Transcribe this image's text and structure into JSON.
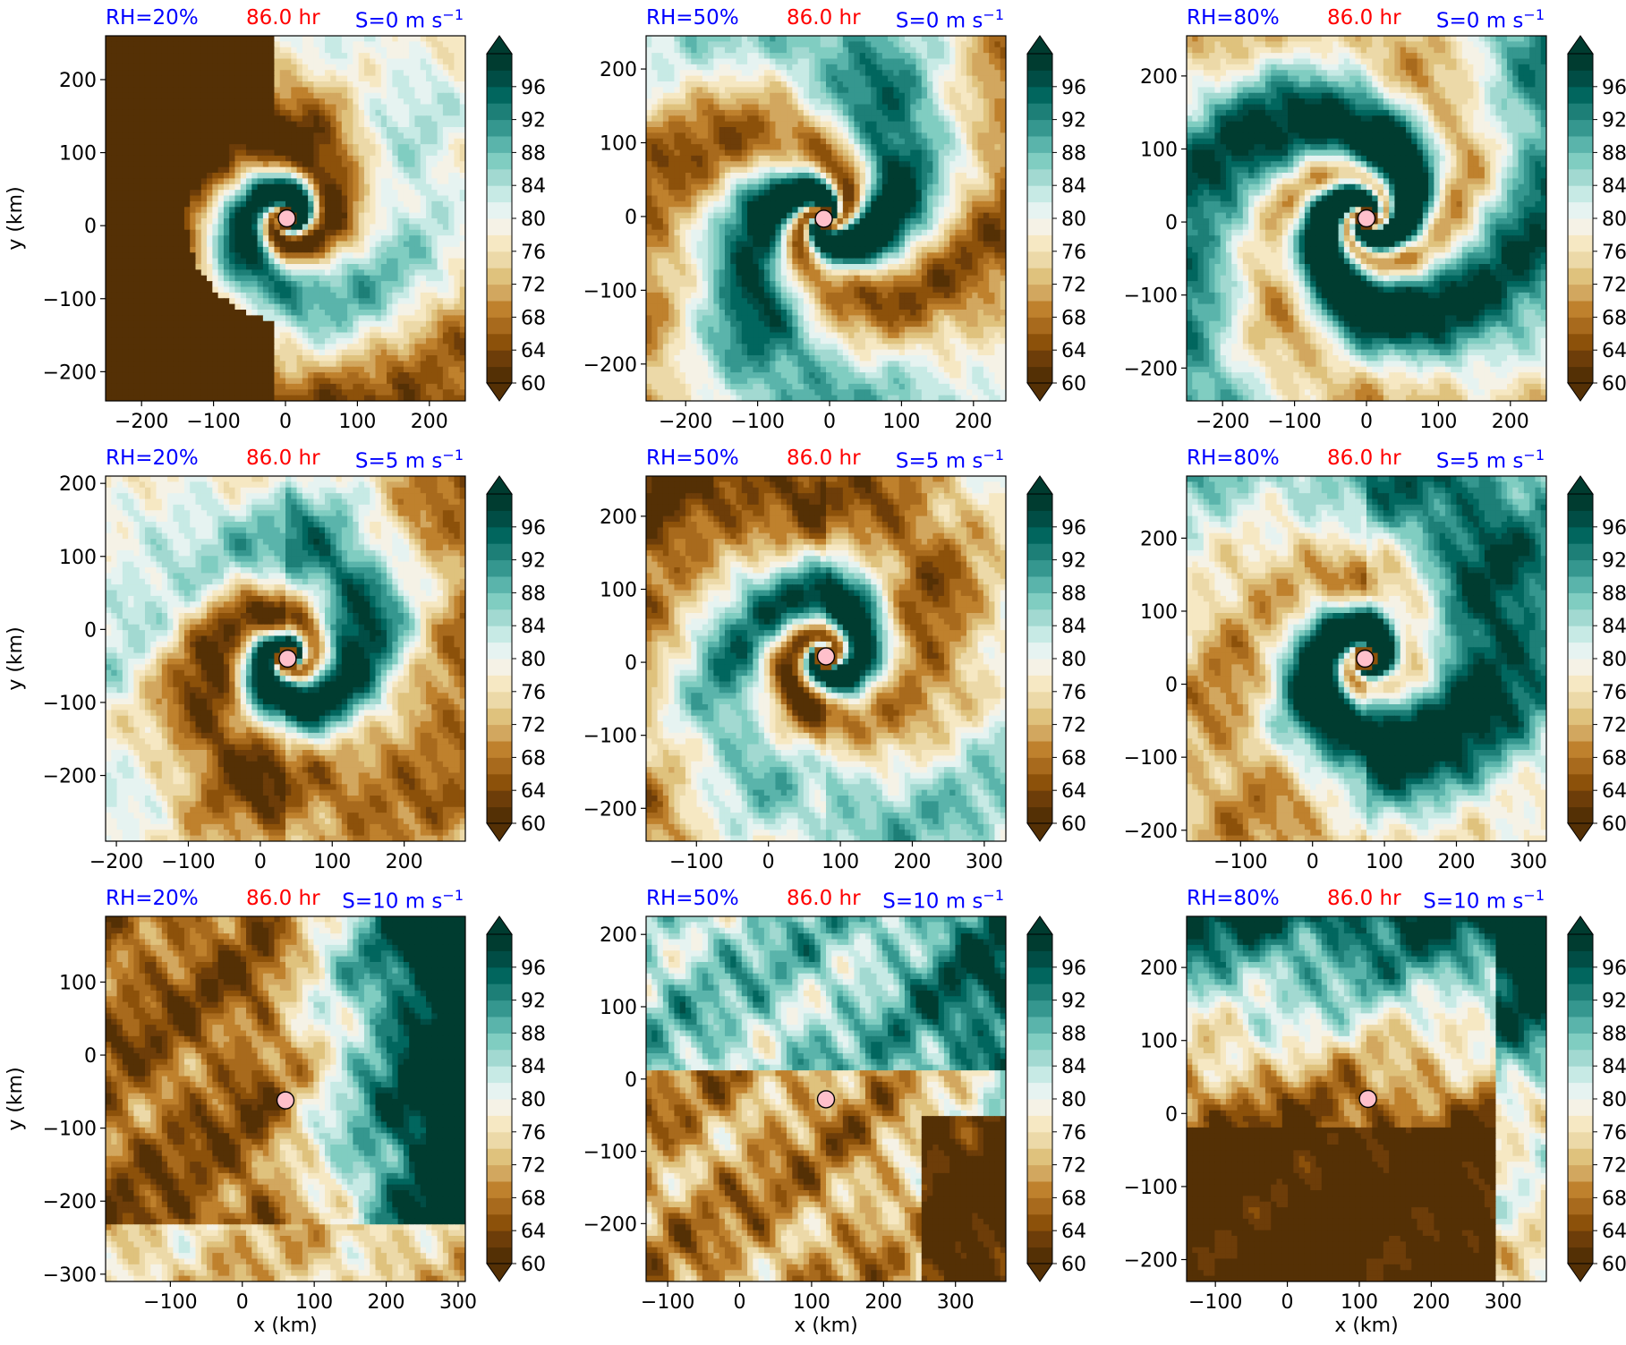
{
  "colors": {
    "title_label": "#0000ff",
    "time_label": "#ff0000",
    "center_marker": "#ffc0cb",
    "colormap_low_to_high": [
      "#543005",
      "#6d3d09",
      "#8c510a",
      "#a86a1d",
      "#bf812d",
      "#d2a75f",
      "#dfc27d",
      "#ecd9a8",
      "#f6e8c3",
      "#f5f2e6",
      "#e6f3f1",
      "#c7eae5",
      "#a2d9d1",
      "#80cdc1",
      "#5ab4ab",
      "#35978f",
      "#1d7f77",
      "#01665e",
      "#014d45",
      "#003c30"
    ]
  },
  "colorbar": {
    "ticks": [
      "60",
      "64",
      "68",
      "72",
      "76",
      "80",
      "84",
      "88",
      "92",
      "96"
    ],
    "min": 60,
    "max": 100,
    "step": 2,
    "extend": "both"
  },
  "axis_labels": {
    "x": "x (km)",
    "y": "y (km)"
  },
  "panels": [
    {
      "rh": "RH=20%",
      "time": "86.0 hr",
      "shear": "S=0 m s",
      "shear_exp": "−1",
      "xlim": [
        -250,
        250
      ],
      "ylim": [
        -240,
        260
      ],
      "xticks": [
        -200,
        -100,
        0,
        100,
        200
      ],
      "yticks": [
        -200,
        -100,
        0,
        100,
        200
      ],
      "center": [
        2,
        10
      ],
      "regime": "spiral_dry"
    },
    {
      "rh": "RH=50%",
      "time": "86.0 hr",
      "shear": "S=0 m s",
      "shear_exp": "−1",
      "xlim": [
        -255,
        245
      ],
      "ylim": [
        -250,
        245
      ],
      "xticks": [
        -200,
        -100,
        0,
        100,
        200
      ],
      "yticks": [
        -200,
        -100,
        0,
        100,
        200
      ],
      "center": [
        -8,
        -3
      ],
      "regime": "spiral_mid"
    },
    {
      "rh": "RH=80%",
      "time": "86.0 hr",
      "shear": "S=0 m s",
      "shear_exp": "−1",
      "xlim": [
        -250,
        250
      ],
      "ylim": [
        -245,
        255
      ],
      "xticks": [
        -200,
        -100,
        0,
        100,
        200
      ],
      "yticks": [
        -200,
        -100,
        0,
        100,
        200
      ],
      "center": [
        0,
        5
      ],
      "regime": "spiral_moist"
    },
    {
      "rh": "RH=20%",
      "time": "86.0 hr",
      "shear": "S=5 m s",
      "shear_exp": "−1",
      "xlim": [
        -215,
        285
      ],
      "ylim": [
        -290,
        210
      ],
      "xticks": [
        -200,
        -100,
        0,
        100,
        200
      ],
      "yticks": [
        -200,
        -100,
        0,
        100,
        200
      ],
      "center": [
        38,
        -40
      ],
      "regime": "sheared5"
    },
    {
      "rh": "RH=50%",
      "time": "86.0 hr",
      "shear": "S=5 m s",
      "shear_exp": "−1",
      "xlim": [
        -170,
        330
      ],
      "ylim": [
        -245,
        255
      ],
      "xticks": [
        -100,
        0,
        100,
        200,
        300
      ],
      "yticks": [
        -200,
        -100,
        0,
        100,
        200
      ],
      "center": [
        80,
        8
      ],
      "regime": "sheared5"
    },
    {
      "rh": "RH=80%",
      "time": "86.0 hr",
      "shear": "S=5 m s",
      "shear_exp": "−1",
      "xlim": [
        -175,
        325
      ],
      "ylim": [
        -215,
        285
      ],
      "xticks": [
        -100,
        0,
        100,
        200,
        300
      ],
      "yticks": [
        -200,
        -100,
        0,
        100,
        200
      ],
      "center": [
        73,
        35
      ],
      "regime": "sheared5_moist"
    },
    {
      "rh": "RH=20%",
      "time": "86.0 hr",
      "shear": "S=10 m s",
      "shear_exp": "−1",
      "xlim": [
        -190,
        310
      ],
      "ylim": [
        -310,
        190
      ],
      "xticks": [
        -100,
        0,
        100,
        200,
        300
      ],
      "yticks": [
        -300,
        -200,
        -100,
        0,
        100
      ],
      "center": [
        60,
        -62
      ],
      "regime": "sheared10_dry"
    },
    {
      "rh": "RH=50%",
      "time": "86.0 hr",
      "shear": "S=10 m s",
      "shear_exp": "−1",
      "xlim": [
        -130,
        370
      ],
      "ylim": [
        -280,
        225
      ],
      "xticks": [
        -100,
        0,
        100,
        200,
        300
      ],
      "yticks": [
        -200,
        -100,
        0,
        100,
        200
      ],
      "center": [
        120,
        -28
      ],
      "regime": "sheared10_mid"
    },
    {
      "rh": "RH=80%",
      "time": "86.0 hr",
      "shear": "S=10 m s",
      "shear_exp": "−1",
      "xlim": [
        -140,
        360
      ],
      "ylim": [
        -230,
        270
      ],
      "xticks": [
        -100,
        0,
        100,
        200,
        300
      ],
      "yticks": [
        -200,
        -100,
        0,
        100,
        200
      ],
      "center": [
        112,
        20
      ],
      "regime": "sheared10_moist"
    }
  ],
  "chart_data": [
    {
      "type": "heatmap",
      "title": "RH=20% 86.0 hr S=0 m s−1",
      "xlabel": "",
      "ylabel": "y (km)",
      "xlim": [
        -250,
        250
      ],
      "ylim": [
        -240,
        260
      ],
      "colorbar_range": [
        60,
        100
      ],
      "storm_center": {
        "x": 2,
        "y": 10
      }
    },
    {
      "type": "heatmap",
      "title": "RH=50% 86.0 hr S=0 m s−1",
      "xlabel": "",
      "ylabel": "",
      "xlim": [
        -255,
        245
      ],
      "ylim": [
        -250,
        245
      ],
      "colorbar_range": [
        60,
        100
      ],
      "storm_center": {
        "x": -8,
        "y": -3
      }
    },
    {
      "type": "heatmap",
      "title": "RH=80% 86.0 hr S=0 m s−1",
      "xlabel": "",
      "ylabel": "",
      "xlim": [
        -250,
        250
      ],
      "ylim": [
        -245,
        255
      ],
      "colorbar_range": [
        60,
        100
      ],
      "storm_center": {
        "x": 0,
        "y": 5
      }
    },
    {
      "type": "heatmap",
      "title": "RH=20% 86.0 hr S=5 m s−1",
      "xlabel": "",
      "ylabel": "y (km)",
      "xlim": [
        -215,
        285
      ],
      "ylim": [
        -290,
        210
      ],
      "colorbar_range": [
        60,
        100
      ],
      "storm_center": {
        "x": 38,
        "y": -40
      }
    },
    {
      "type": "heatmap",
      "title": "RH=50% 86.0 hr S=5 m s−1",
      "xlabel": "",
      "ylabel": "",
      "xlim": [
        -170,
        330
      ],
      "ylim": [
        -245,
        255
      ],
      "colorbar_range": [
        60,
        100
      ],
      "storm_center": {
        "x": 80,
        "y": 8
      }
    },
    {
      "type": "heatmap",
      "title": "RH=80% 86.0 hr S=5 m s−1",
      "xlabel": "",
      "ylabel": "",
      "xlim": [
        -175,
        325
      ],
      "ylim": [
        -215,
        285
      ],
      "colorbar_range": [
        60,
        100
      ],
      "storm_center": {
        "x": 73,
        "y": 35
      }
    },
    {
      "type": "heatmap",
      "title": "RH=20% 86.0 hr S=10 m s−1",
      "xlabel": "x (km)",
      "ylabel": "y (km)",
      "xlim": [
        -190,
        310
      ],
      "ylim": [
        -310,
        190
      ],
      "colorbar_range": [
        60,
        100
      ],
      "storm_center": {
        "x": 60,
        "y": -62
      }
    },
    {
      "type": "heatmap",
      "title": "RH=50% 86.0 hr S=10 m s−1",
      "xlabel": "x (km)",
      "ylabel": "",
      "xlim": [
        -130,
        370
      ],
      "ylim": [
        -280,
        225
      ],
      "colorbar_range": [
        60,
        100
      ],
      "storm_center": {
        "x": 120,
        "y": -28
      }
    },
    {
      "type": "heatmap",
      "title": "RH=80% 86.0 hr S=10 m s−1",
      "xlabel": "x (km)",
      "ylabel": "",
      "xlim": [
        -140,
        360
      ],
      "ylim": [
        -230,
        270
      ],
      "colorbar_range": [
        60,
        100
      ],
      "storm_center": {
        "x": 112,
        "y": 20
      }
    }
  ]
}
